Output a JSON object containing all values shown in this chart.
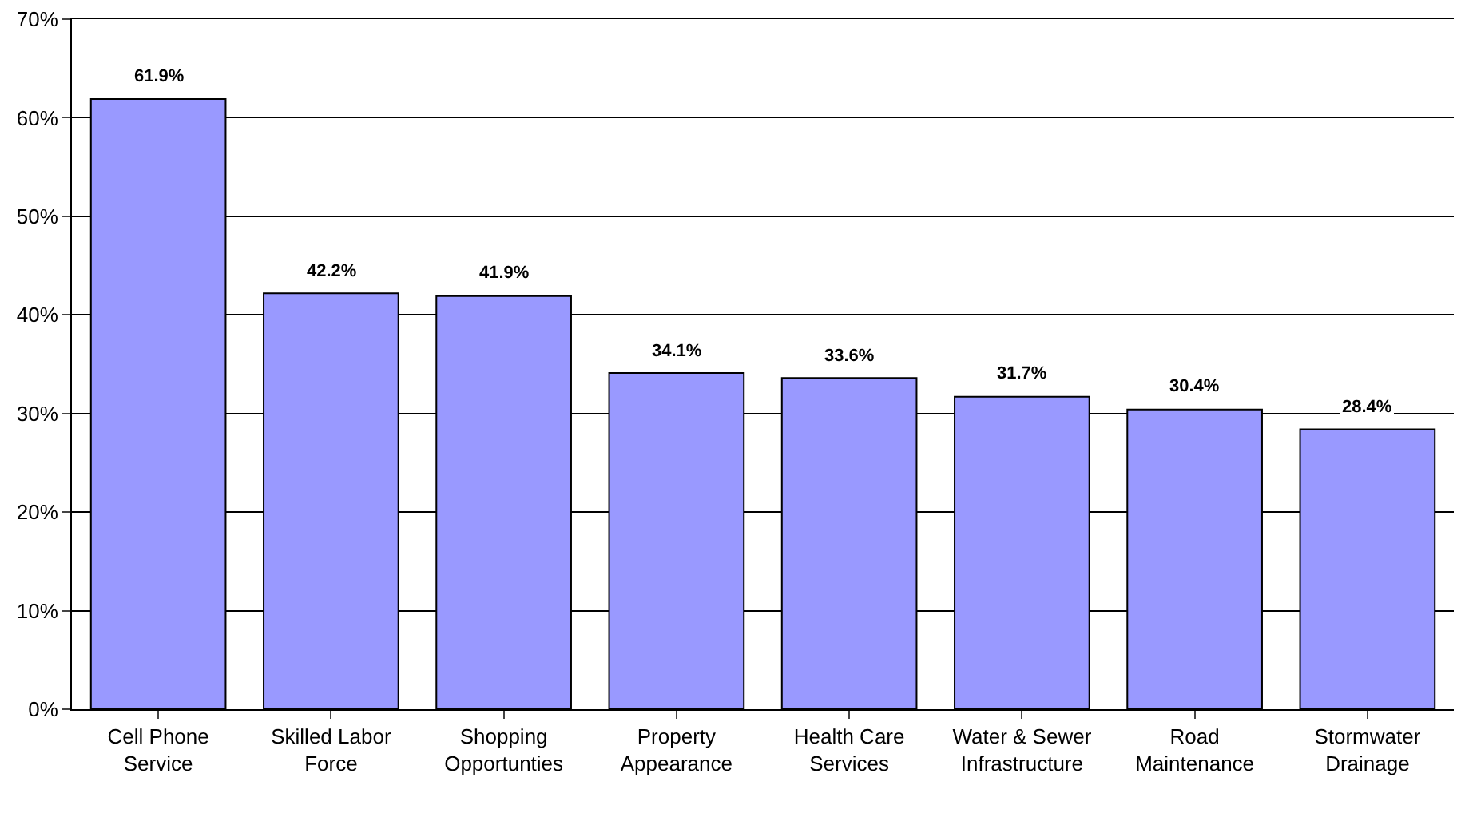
{
  "chart_data": {
    "type": "bar",
    "categories": [
      "Cell Phone Service",
      "Skilled Labor Force",
      "Shopping Opportunties",
      "Property Appearance",
      "Health Care Services",
      "Water & Sewer Infrastructure",
      "Road Maintenance",
      "Stormwater Drainage"
    ],
    "values": [
      61.9,
      42.2,
      41.9,
      34.1,
      33.6,
      31.7,
      30.4,
      28.4
    ],
    "value_labels": [
      "61.9%",
      "42.2%",
      "41.9%",
      "34.1%",
      "33.6%",
      "31.7%",
      "30.4%",
      "28.4%"
    ],
    "color": "#9999ff",
    "ylim": [
      0,
      70
    ],
    "yticks": [
      {
        "value": 0,
        "label": "0%"
      },
      {
        "value": 10,
        "label": "10%"
      },
      {
        "value": 20,
        "label": "20%"
      },
      {
        "value": 30,
        "label": "30%"
      },
      {
        "value": 40,
        "label": "40%"
      },
      {
        "value": 50,
        "label": "50%"
      },
      {
        "value": 60,
        "label": "60%"
      },
      {
        "value": 70,
        "label": "70%"
      }
    ],
    "grid": "y"
  }
}
